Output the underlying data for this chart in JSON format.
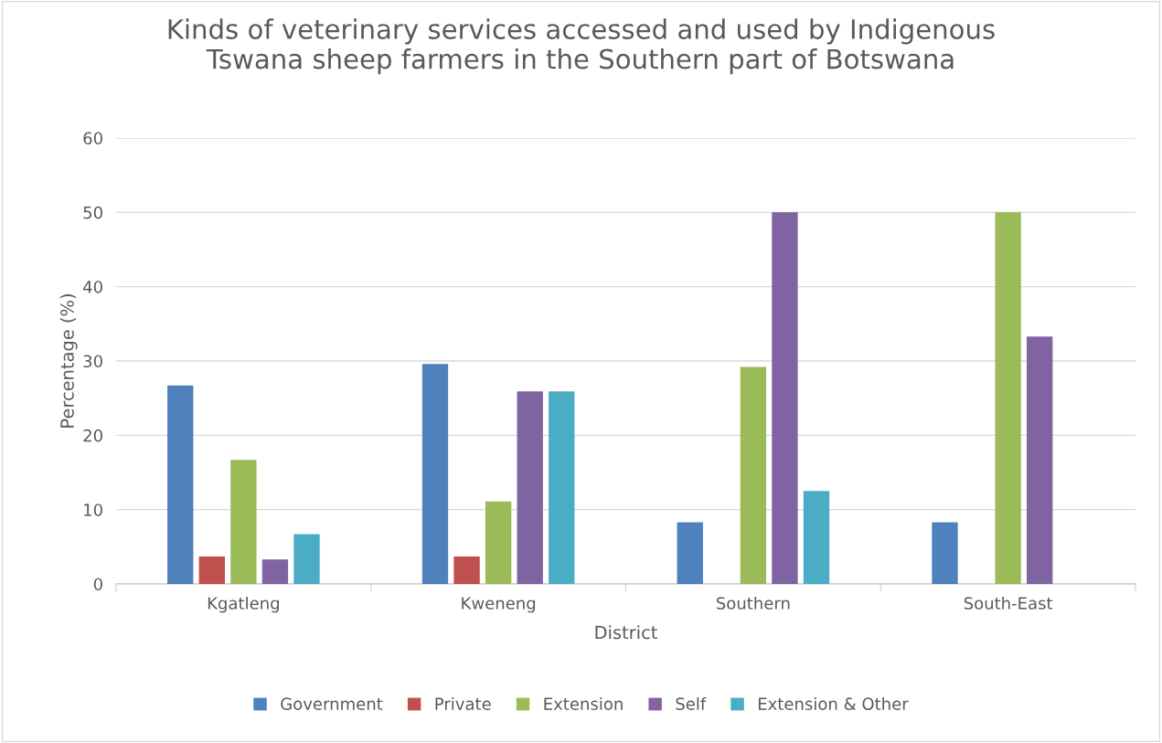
{
  "chart_data": {
    "type": "bar",
    "title": "Kinds of veterinary services accessed and used by Indigenous\nTswana sheep farmers in the Southern part of Botswana",
    "xlabel": "District",
    "ylabel": "Percentage (%)",
    "categories": [
      "Kgatleng",
      "Kweneng",
      "Southern",
      "South-East"
    ],
    "series": [
      {
        "name": "Government",
        "color": "#4f81bd",
        "values": [
          26.7,
          29.6,
          8.3,
          8.3
        ]
      },
      {
        "name": "Private",
        "color": "#c0504d",
        "values": [
          3.7,
          3.7,
          0,
          0
        ]
      },
      {
        "name": "Extension",
        "color": "#9bbb59",
        "values": [
          16.7,
          11.1,
          29.2,
          50
        ]
      },
      {
        "name": "Self",
        "color": "#8064a2",
        "values": [
          3.3,
          25.9,
          50,
          33.3
        ]
      },
      {
        "name": "Extension & Other",
        "color": "#4bacc6",
        "values": [
          6.7,
          25.9,
          12.5,
          0
        ]
      }
    ],
    "ylim": [
      0,
      60
    ],
    "yticks": [
      0,
      10,
      20,
      30,
      40,
      50,
      60
    ],
    "grid": "y",
    "legend": "bottom"
  }
}
